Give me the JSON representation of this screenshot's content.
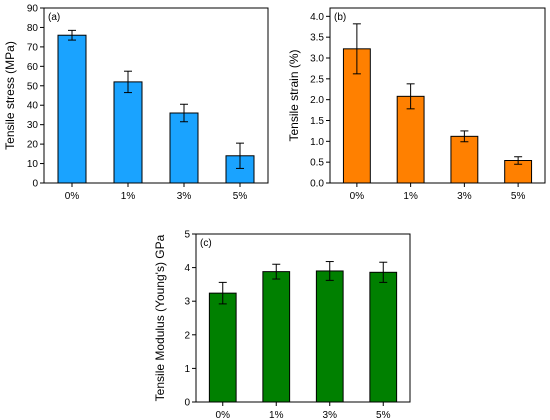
{
  "chart_data": [
    {
      "type": "bar",
      "panel_label": "(a)",
      "categories": [
        "0%",
        "1%",
        "3%",
        "5%"
      ],
      "values": [
        76,
        52,
        36,
        14
      ],
      "errors": [
        2.5,
        5.5,
        4.5,
        6.5
      ],
      "xlabel": "",
      "ylabel": "Tensile stress (MPa)",
      "ylim": [
        0,
        90
      ],
      "yticks": [
        0,
        10,
        20,
        30,
        40,
        50,
        60,
        70,
        80,
        90
      ],
      "ytick_labels": [
        "0",
        "10",
        "20",
        "30",
        "40",
        "50",
        "60",
        "70",
        "80",
        "90"
      ],
      "color": "#1aa3ff",
      "grid": false
    },
    {
      "type": "bar",
      "panel_label": "(b)",
      "categories": [
        "0%",
        "1%",
        "3%",
        "5%"
      ],
      "values": [
        3.22,
        2.08,
        1.12,
        0.54
      ],
      "errors": [
        0.6,
        0.3,
        0.13,
        0.09
      ],
      "xlabel": "",
      "ylabel": "Tensile strain (%)",
      "ylim": [
        0,
        4.2
      ],
      "yticks": [
        0,
        0.5,
        1.0,
        1.5,
        2.0,
        2.5,
        3.0,
        3.5,
        4.0
      ],
      "ytick_labels": [
        "0.0",
        "0.5",
        "1.0",
        "1.5",
        "2.0",
        "2.5",
        "3.0",
        "3.5",
        "4.0"
      ],
      "color": "#ff8000",
      "grid": false
    },
    {
      "type": "bar",
      "panel_label": "(c)",
      "categories": [
        "0%",
        "1%",
        "3%",
        "5%"
      ],
      "values": [
        3.24,
        3.88,
        3.9,
        3.86
      ],
      "errors": [
        0.32,
        0.22,
        0.28,
        0.3
      ],
      "xlabel": "",
      "ylabel": "Tensile Modulus (Young's) GPa",
      "ylim": [
        0,
        5
      ],
      "yticks": [
        0,
        1,
        2,
        3,
        4,
        5
      ],
      "ytick_labels": [
        "0",
        "1",
        "2",
        "3",
        "4",
        "5"
      ],
      "color": "#008000",
      "grid": false
    }
  ]
}
